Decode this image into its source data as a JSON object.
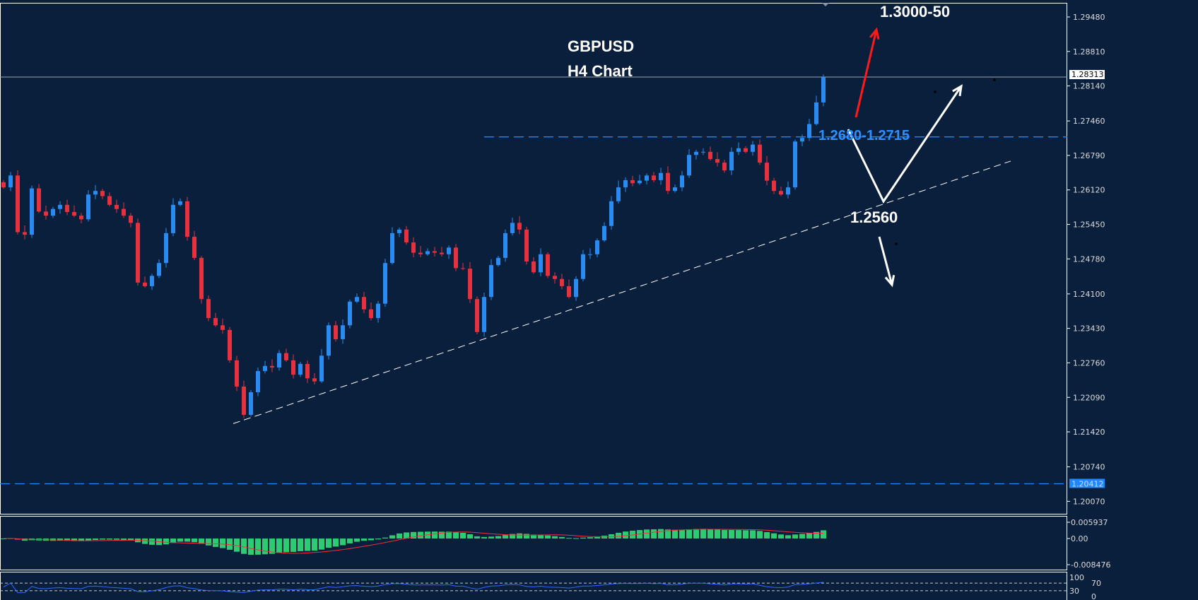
{
  "chart_data": {
    "type": "candlestick",
    "symbol_title": "GBPUSD",
    "timeframe_title": "H4 Chart",
    "price_axis": {
      "range": [
        1.2,
        1.299
      ],
      "ticks": [
        "1.29480",
        "1.28810",
        "1.28140",
        "1.27460",
        "1.26790",
        "1.26120",
        "1.25450",
        "1.24780",
        "1.24100",
        "1.23430",
        "1.22760",
        "1.22090",
        "1.21420",
        "1.20740",
        "1.20070"
      ]
    },
    "current_price": {
      "value": 1.28313,
      "label": "1.28313"
    },
    "support_line": {
      "value": 1.20412,
      "label": "1.20412",
      "color": "#1e88ff"
    },
    "resistance_zone_line": {
      "value": 1.2715,
      "color": "#1e88ff"
    },
    "closes": [
      1.2617,
      1.264,
      1.253,
      1.2525,
      1.2615,
      1.257,
      1.2562,
      1.2575,
      1.2583,
      1.2569,
      1.2562,
      1.2555,
      1.2603,
      1.261,
      1.26,
      1.2583,
      1.2575,
      1.2562,
      1.2548,
      1.2432,
      1.2425,
      1.2445,
      1.247,
      1.2528,
      1.2583,
      1.259,
      1.2521,
      1.248,
      1.24,
      1.2363,
      1.2349,
      1.234,
      1.2281,
      1.223,
      1.2175,
      1.2219,
      1.226,
      1.227,
      1.2267,
      1.2295,
      1.2281,
      1.2253,
      1.2274,
      1.2246,
      1.224,
      1.229,
      1.2349,
      1.2322,
      1.2349,
      1.2395,
      1.2404,
      1.238,
      1.2363,
      1.2391,
      1.247,
      1.2528,
      1.2535,
      1.251,
      1.249,
      1.2487,
      1.2493,
      1.249,
      1.2487,
      1.25,
      1.246,
      1.2459,
      1.24,
      1.2336,
      1.2404,
      1.2466,
      1.248,
      1.2528,
      1.2548,
      1.2535,
      1.2473,
      1.2452,
      1.2487,
      1.2445,
      1.2439,
      1.2425,
      1.2404,
      1.2439,
      1.2487,
      1.2487,
      1.2514,
      1.2542,
      1.259,
      1.2617,
      1.2631,
      1.2625,
      1.263,
      1.264,
      1.2631,
      1.2645,
      1.261,
      1.2617,
      1.264,
      1.268,
      1.2686,
      1.2686,
      1.2672,
      1.2665,
      1.265,
      1.2686,
      1.2693,
      1.2686,
      1.27,
      1.2665,
      1.263,
      1.261,
      1.2603,
      1.2617,
      1.2706,
      1.2713,
      1.274,
      1.2782,
      1.2831
    ],
    "colors": {
      "bull": "#2a8cf2",
      "bear": "#e8313f",
      "background": "#0a1f3b",
      "macd_hist": "#2ecc71",
      "macd_signal": "#ff2a3a",
      "rsi": "#2f6bff"
    },
    "trendline": {
      "from_price": 1.2158,
      "to_price": 1.2668,
      "style": "dashed",
      "color": "#ffffff"
    },
    "annotations": {
      "target_up": "1.3000-50",
      "zone": "1.2680-1.2715",
      "pivot": "1.2560"
    },
    "macd": {
      "ticks": [
        "0.005937",
        "0.00",
        "-0.008476"
      ],
      "max": 0.005937,
      "min": -0.008476
    },
    "rsi": {
      "ticks": [
        "100",
        "70",
        "30",
        "0"
      ],
      "levels": [
        70,
        30
      ]
    }
  }
}
